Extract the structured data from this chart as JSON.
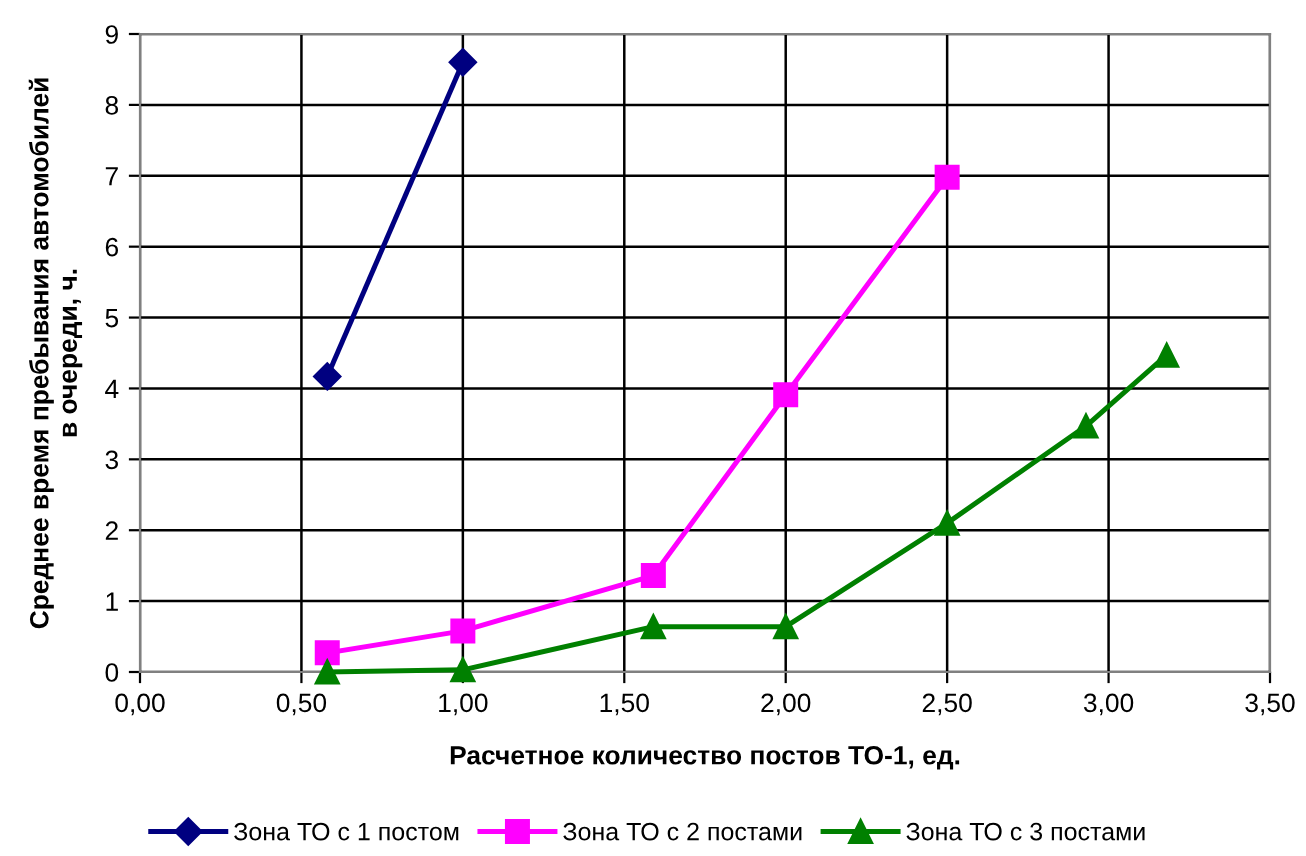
{
  "chart_data": {
    "type": "line",
    "xlabel": "Расчетное количество постов ТО-1, ед.",
    "ylabel": "Среднее время пребывания автомобилей\nв очереди, ч.",
    "series": [
      {
        "name": "Зона ТО с 1 постом",
        "color": "#000080",
        "marker": "diamond",
        "x": [
          0.58,
          1.0
        ],
        "values": [
          4.17,
          8.6
        ]
      },
      {
        "name": "Зона ТО с 2 постами",
        "color": "#ff00ff",
        "marker": "square",
        "x": [
          0.58,
          1.0,
          1.59,
          2.0,
          2.5
        ],
        "values": [
          0.27,
          0.58,
          1.36,
          3.91,
          6.98
        ]
      },
      {
        "name": "Зона ТО с 3 постами",
        "color": "#008000",
        "marker": "triangle",
        "x": [
          0.58,
          1.0,
          1.59,
          2.0,
          2.5,
          2.93,
          3.18
        ],
        "values": [
          0,
          0.03,
          0.64,
          0.64,
          2.1,
          3.47,
          4.47
        ]
      }
    ],
    "xlim": [
      0,
      3.5
    ],
    "ylim": [
      0,
      9
    ],
    "xticks": [
      {
        "value": 0,
        "label": "0,00"
      },
      {
        "value": 0.5,
        "label": "0,50"
      },
      {
        "value": 1,
        "label": "1,00"
      },
      {
        "value": 1.5,
        "label": "1,50"
      },
      {
        "value": 2,
        "label": "2,00"
      },
      {
        "value": 2.5,
        "label": "2,50"
      },
      {
        "value": 3,
        "label": "3,00"
      },
      {
        "value": 3.5,
        "label": "3,50"
      }
    ],
    "yticks": [
      0,
      1,
      2,
      3,
      4,
      5,
      6,
      7,
      8,
      9
    ],
    "grid": true,
    "legend": "bottom",
    "line_style": "solid"
  }
}
